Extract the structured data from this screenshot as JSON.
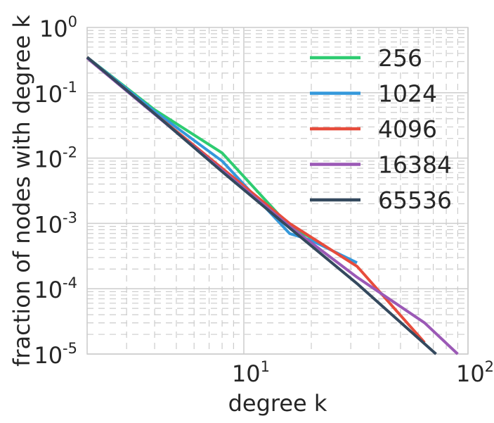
{
  "chart_data": {
    "type": "line",
    "title": "",
    "xlabel": "degree k",
    "ylabel": "fraction of nodes with degree k",
    "x_scale": "log",
    "y_scale": "log",
    "xlim": [
      2,
      100
    ],
    "ylim": [
      1e-05,
      1
    ],
    "grid": true,
    "legend_position": "top-right",
    "x_ticks": [
      {
        "value": 10,
        "base": "10",
        "exp": "1"
      },
      {
        "value": 100,
        "base": "10",
        "exp": "2"
      }
    ],
    "y_ticks": [
      {
        "value": 1,
        "base": "10",
        "exp": "0"
      },
      {
        "value": 0.1,
        "base": "10",
        "exp": "-1"
      },
      {
        "value": 0.01,
        "base": "10",
        "exp": "-2"
      },
      {
        "value": 0.001,
        "base": "10",
        "exp": "-3"
      },
      {
        "value": 0.0001,
        "base": "10",
        "exp": "-4"
      },
      {
        "value": 1e-05,
        "base": "10",
        "exp": "-5"
      }
    ],
    "series": [
      {
        "name": "256",
        "color": "#2ecc71",
        "x": [
          2,
          4,
          8,
          16,
          20
        ],
        "y": [
          0.35,
          0.055,
          0.012,
          0.0009,
          0.0006
        ]
      },
      {
        "name": "1024",
        "color": "#3498db",
        "x": [
          2,
          4,
          8,
          16,
          20,
          32
        ],
        "y": [
          0.35,
          0.052,
          0.009,
          0.0007,
          0.00055,
          0.00025
        ]
      },
      {
        "name": "4096",
        "color": "#e74c3c",
        "x": [
          2,
          4,
          8,
          16,
          32,
          64
        ],
        "y": [
          0.35,
          0.048,
          0.007,
          0.001,
          0.00022,
          1.5e-05
        ]
      },
      {
        "name": "16384",
        "color": "#9b59b6",
        "x": [
          2,
          4,
          8,
          16,
          32,
          64,
          90
        ],
        "y": [
          0.34,
          0.047,
          0.0065,
          0.0009,
          0.00015,
          3e-05,
          1e-05
        ]
      },
      {
        "name": "65536",
        "color": "#34495e",
        "x": [
          2,
          4,
          8,
          16,
          32,
          72
        ],
        "y": [
          0.35,
          0.048,
          0.0062,
          0.00085,
          0.00012,
          1e-05
        ]
      }
    ]
  }
}
